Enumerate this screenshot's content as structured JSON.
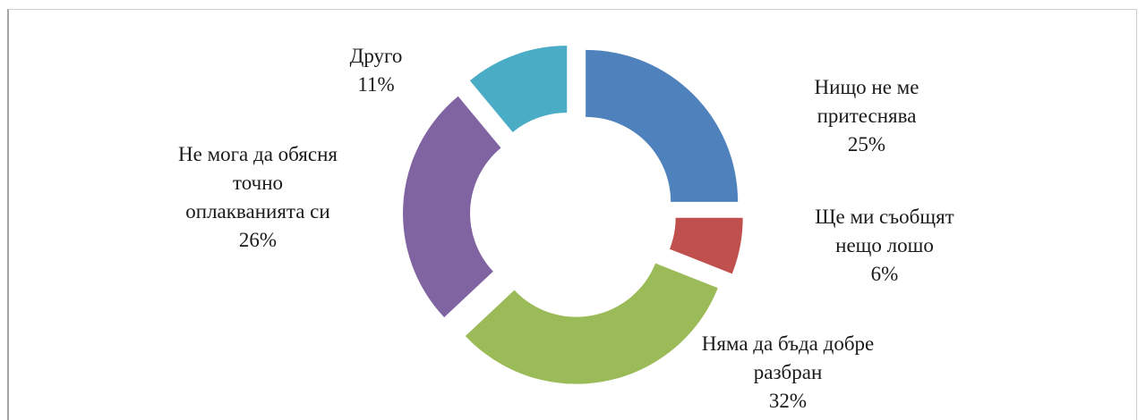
{
  "chart_data": {
    "type": "pie",
    "variant": "exploded-doughnut",
    "title": "",
    "legend": "none",
    "slices": [
      {
        "label_lines": [
          "Нищо не ме",
          "притеснява"
        ],
        "percent_label": "25%",
        "value": 25,
        "color": "#4F81BD"
      },
      {
        "label_lines": [
          "Ще ми съобщят",
          "нещо лошо"
        ],
        "percent_label": "6%",
        "value": 6,
        "color": "#C0504D"
      },
      {
        "label_lines": [
          "Няма да бъда добре",
          "разбран"
        ],
        "percent_label": "32%",
        "value": 32,
        "color": "#9BBB59"
      },
      {
        "label_lines": [
          "Не мога да обясня",
          "точно",
          "оплакванията си"
        ],
        "percent_label": "26%",
        "value": 26,
        "color": "#8064A2"
      },
      {
        "label_lines": [
          "Друго"
        ],
        "percent_label": "11%",
        "value": 11,
        "color": "#4BACC6"
      }
    ]
  }
}
